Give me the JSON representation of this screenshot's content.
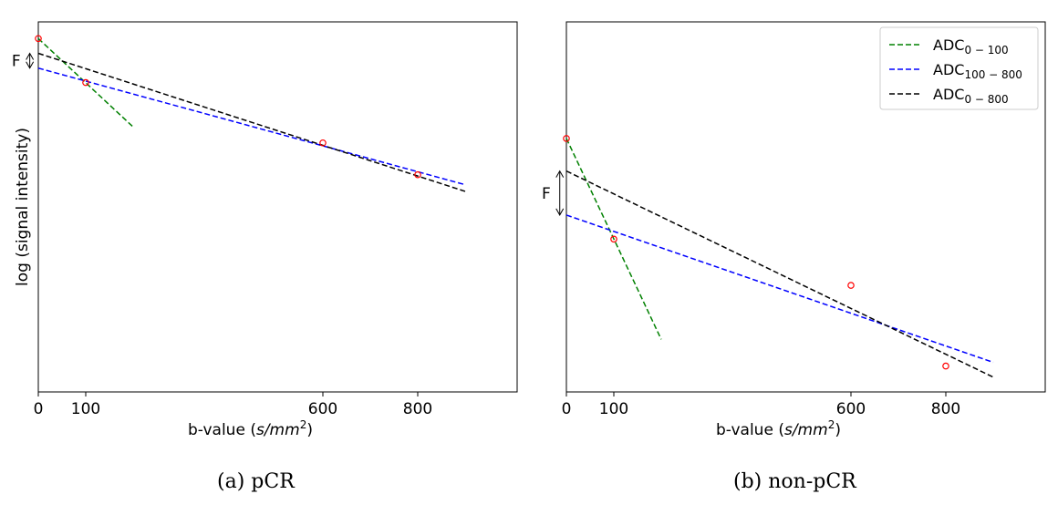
{
  "figure": {
    "captions": [
      "(a) pCR",
      "(b) non-pCR"
    ]
  },
  "colors": {
    "adc_0_100": "#008000",
    "adc_100_800": "#0000ff",
    "adc_0_800": "#000000",
    "points": "#ff0000"
  },
  "chart_data": [
    {
      "type": "line",
      "xlabel": "b-value (s/mm²)",
      "xlabel_prefix": "b-value (",
      "xlabel_unit": "s/mm",
      "xlabel_sup": "2",
      "xlabel_suffix": ")",
      "ylabel": "log (signal intensity)",
      "x_ticks": [
        0,
        100,
        600,
        800
      ],
      "x_tick_labels": [
        "0",
        "100",
        "600",
        "800"
      ],
      "xlim": [
        0,
        1000
      ],
      "ylim": [
        0,
        1
      ],
      "grid": false,
      "legend": "none",
      "scatter": {
        "x": [
          0,
          100,
          600,
          800
        ],
        "y": [
          0.955,
          0.836,
          0.673,
          0.587
        ]
      },
      "fits": [
        {
          "key": "adc_0_100",
          "x": [
            0,
            200
          ],
          "y": [
            0.955,
            0.716
          ]
        },
        {
          "key": "adc_100_800",
          "x": [
            0,
            900
          ],
          "y": [
            0.875,
            0.56
          ]
        },
        {
          "key": "adc_0_800",
          "x": [
            0,
            900
          ],
          "y": [
            0.915,
            0.542
          ]
        }
      ],
      "annotation": {
        "label": "F",
        "x": -18,
        "y_top": 0.915,
        "y_bottom": 0.875
      }
    },
    {
      "type": "line",
      "xlabel": "b-value (s/mm²)",
      "xlabel_prefix": "b-value (",
      "xlabel_unit": "s/mm",
      "xlabel_sup": "2",
      "xlabel_suffix": ")",
      "ylabel": "",
      "x_ticks": [
        0,
        100,
        600,
        800
      ],
      "x_tick_labels": [
        "0",
        "100",
        "600",
        "800"
      ],
      "xlim": [
        0,
        1000
      ],
      "ylim": [
        0,
        1
      ],
      "grid": false,
      "legend": "top-right",
      "legend_entries": [
        {
          "key": "adc_0_100",
          "base": "ADC",
          "sub": "0 − 100"
        },
        {
          "key": "adc_100_800",
          "base": "ADC",
          "sub": "100 − 800"
        },
        {
          "key": "adc_0_800",
          "base": "ADC",
          "sub": "0 − 800"
        }
      ],
      "scatter": {
        "x": [
          0,
          100,
          600,
          800
        ],
        "y": [
          0.685,
          0.413,
          0.288,
          0.07
        ]
      },
      "fits": [
        {
          "key": "adc_0_100",
          "x": [
            0,
            200
          ],
          "y": [
            0.685,
            0.142
          ]
        },
        {
          "key": "adc_100_800",
          "x": [
            0,
            900
          ],
          "y": [
            0.478,
            0.08
          ]
        },
        {
          "key": "adc_0_800",
          "x": [
            0,
            900
          ],
          "y": [
            0.597,
            0.04
          ]
        }
      ],
      "annotation": {
        "label": "F",
        "x": -14,
        "y_top": 0.597,
        "y_bottom": 0.478
      }
    }
  ]
}
